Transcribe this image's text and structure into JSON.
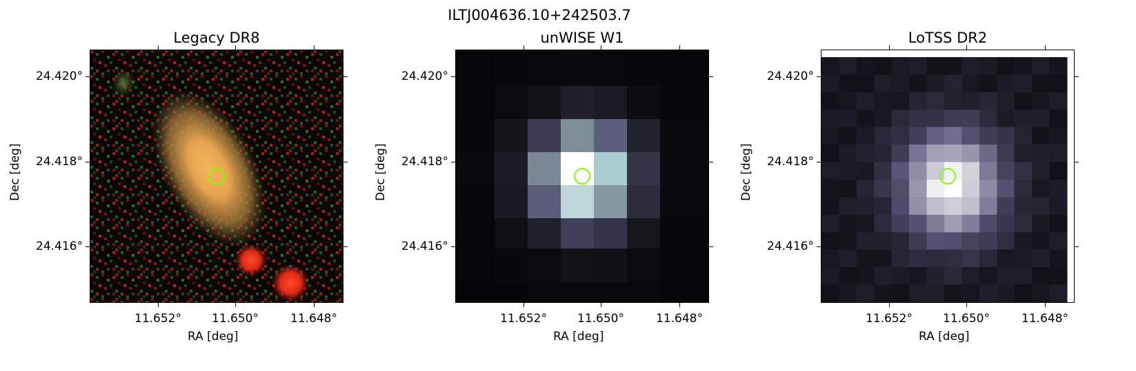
{
  "figure": {
    "title": "ILTJ004636.10+242503.7"
  },
  "panels": [
    {
      "title": "Legacy DR8",
      "xlabel": "RA [deg]",
      "ylabel": "Dec [deg]",
      "xticks": [
        "11.652°",
        "11.650°",
        "11.648°"
      ],
      "yticks": [
        "24.420°",
        "24.418°",
        "24.416°"
      ],
      "image": "rgb-galaxy-cutout"
    },
    {
      "title": "unWISE W1",
      "xlabel": "RA [deg]",
      "ylabel": "Dec [deg]",
      "xticks": [
        "11.652°",
        "11.650°",
        "11.648°"
      ],
      "yticks": [
        "24.420°",
        "24.418°",
        "24.416°"
      ],
      "image": "grayscale-pixel-map"
    },
    {
      "title": "LoTSS DR2",
      "xlabel": "RA [deg]",
      "ylabel": "Dec [deg]",
      "xticks": [
        "11.652°",
        "11.650°",
        "11.648°"
      ],
      "yticks": [
        "24.420°",
        "24.418°",
        "24.416°"
      ],
      "image": "grayscale-pixel-map"
    }
  ],
  "marker": {
    "shape": "circle",
    "color": "#7fff00"
  }
}
